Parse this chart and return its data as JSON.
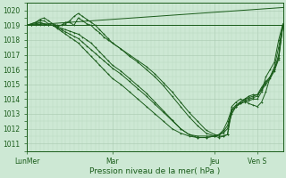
{
  "xlabel": "Pression niveau de la mer( hPa )",
  "ylim": [
    1010.5,
    1020.5
  ],
  "xlim": [
    0,
    120
  ],
  "yticks": [
    1011,
    1012,
    1013,
    1014,
    1015,
    1016,
    1017,
    1018,
    1019,
    1020
  ],
  "xtick_labels": [
    "LunMer",
    "Mar",
    "Jeu",
    "Ven S"
  ],
  "xtick_positions": [
    0,
    40,
    88,
    108
  ],
  "background_color": "#cde8d4",
  "grid_color_major": "#a8c8b0",
  "grid_color_minor": "#b8d8c0",
  "line_color": "#1a5c1a",
  "lines": [
    {
      "x": [
        0,
        2,
        4,
        6,
        8,
        10,
        12,
        14,
        16,
        18,
        20,
        22,
        24,
        26,
        28,
        30,
        32,
        34,
        36,
        38,
        40,
        44,
        48,
        52,
        56,
        60,
        64,
        68,
        72,
        76,
        80,
        84,
        88,
        90,
        92,
        94,
        96,
        98,
        100,
        102,
        104,
        106,
        108,
        110,
        112,
        114,
        116,
        118,
        120
      ],
      "y": [
        1019.0,
        1019.1,
        1019.2,
        1019.3,
        1019.3,
        1019.1,
        1019.0,
        1018.9,
        1019.0,
        1019.2,
        1019.2,
        1019.0,
        1019.5,
        1019.3,
        1019.1,
        1019.0,
        1018.7,
        1018.5,
        1018.2,
        1018.0,
        1017.8,
        1017.4,
        1017.0,
        1016.6,
        1016.2,
        1015.7,
        1015.1,
        1014.5,
        1013.8,
        1013.1,
        1012.5,
        1011.9,
        1011.6,
        1011.5,
        1011.5,
        1011.6,
        1013.5,
        1013.8,
        1014.0,
        1013.9,
        1013.7,
        1013.6,
        1013.5,
        1013.8,
        1014.5,
        1015.5,
        1016.2,
        1017.5,
        1019.0
      ]
    },
    {
      "x": [
        0,
        2,
        4,
        6,
        8,
        10,
        12,
        14,
        16,
        18,
        20,
        22,
        24,
        26,
        28,
        30,
        32,
        34,
        36,
        38,
        40,
        44,
        48,
        52,
        56,
        60,
        64,
        68,
        72,
        76,
        80,
        84,
        88,
        90,
        92,
        94,
        96,
        98,
        100,
        102,
        104,
        106,
        108,
        110,
        112,
        114,
        116,
        118,
        120
      ],
      "y": [
        1019.0,
        1019.1,
        1019.2,
        1019.4,
        1019.5,
        1019.3,
        1019.1,
        1019.0,
        1019.0,
        1019.1,
        1019.3,
        1019.6,
        1019.8,
        1019.6,
        1019.4,
        1019.2,
        1019.0,
        1018.7,
        1018.4,
        1018.1,
        1017.8,
        1017.4,
        1016.9,
        1016.5,
        1016.0,
        1015.5,
        1014.9,
        1014.2,
        1013.5,
        1012.8,
        1012.2,
        1011.7,
        1011.5,
        1011.4,
        1011.5,
        1011.6,
        1013.2,
        1013.5,
        1013.7,
        1013.8,
        1013.9,
        1014.0,
        1014.0,
        1014.5,
        1015.5,
        1016.0,
        1016.5,
        1018.0,
        1019.1
      ]
    },
    {
      "x": [
        0,
        2,
        4,
        6,
        8,
        10,
        12,
        14,
        16,
        18,
        20,
        22,
        24,
        26,
        28,
        30,
        32,
        34,
        36,
        38,
        40,
        44,
        48,
        52,
        56,
        60,
        64,
        68,
        72,
        76,
        80,
        84,
        88,
        90,
        92,
        94,
        96,
        98,
        100,
        102,
        104,
        106,
        108,
        110,
        112,
        114,
        116,
        118,
        120
      ],
      "y": [
        1019.0,
        1019.05,
        1019.1,
        1019.2,
        1019.1,
        1019.0,
        1019.0,
        1018.9,
        1018.8,
        1018.7,
        1018.6,
        1018.5,
        1018.4,
        1018.2,
        1018.0,
        1017.8,
        1017.5,
        1017.2,
        1016.9,
        1016.6,
        1016.3,
        1015.9,
        1015.4,
        1014.9,
        1014.4,
        1013.8,
        1013.2,
        1012.6,
        1012.0,
        1011.6,
        1011.5,
        1011.5,
        1011.5,
        1011.6,
        1011.7,
        1012.0,
        1013.0,
        1013.5,
        1013.8,
        1014.0,
        1014.2,
        1014.3,
        1014.3,
        1014.8,
        1015.2,
        1015.5,
        1016.0,
        1017.0,
        1019.0
      ]
    },
    {
      "x": [
        0,
        2,
        4,
        6,
        8,
        10,
        12,
        14,
        16,
        18,
        20,
        22,
        24,
        26,
        28,
        30,
        32,
        34,
        36,
        38,
        40,
        44,
        48,
        52,
        56,
        60,
        64,
        68,
        72,
        76,
        80,
        84,
        88,
        90,
        92,
        94,
        96,
        98,
        100,
        102,
        104,
        106,
        108,
        110,
        112,
        114,
        116,
        118,
        120
      ],
      "y": [
        1019.0,
        1019.05,
        1019.1,
        1019.15,
        1019.1,
        1019.0,
        1019.0,
        1018.85,
        1018.7,
        1018.55,
        1018.4,
        1018.25,
        1018.1,
        1017.85,
        1017.6,
        1017.35,
        1017.1,
        1016.85,
        1016.6,
        1016.35,
        1016.1,
        1015.7,
        1015.2,
        1014.7,
        1014.2,
        1013.65,
        1013.1,
        1012.55,
        1012.0,
        1011.6,
        1011.4,
        1011.4,
        1011.5,
        1011.6,
        1011.8,
        1012.2,
        1013.2,
        1013.5,
        1013.7,
        1013.9,
        1014.0,
        1014.1,
        1014.2,
        1014.7,
        1015.1,
        1015.5,
        1016.0,
        1016.8,
        1019.0
      ]
    },
    {
      "x": [
        0,
        2,
        4,
        6,
        8,
        10,
        12,
        14,
        16,
        18,
        20,
        22,
        24,
        26,
        28,
        30,
        32,
        34,
        36,
        38,
        40,
        44,
        48,
        52,
        56,
        60,
        64,
        68,
        72,
        76,
        80,
        84,
        88,
        90,
        92,
        94,
        96,
        98,
        100,
        102,
        104,
        106,
        108,
        110,
        112,
        114,
        116,
        118,
        120
      ],
      "y": [
        1019.0,
        1019.0,
        1019.0,
        1019.05,
        1019.0,
        1019.0,
        1019.0,
        1018.8,
        1018.6,
        1018.4,
        1018.2,
        1018.0,
        1017.8,
        1017.5,
        1017.2,
        1016.9,
        1016.6,
        1016.3,
        1016.0,
        1015.7,
        1015.4,
        1015.0,
        1014.5,
        1014.0,
        1013.5,
        1013.0,
        1012.5,
        1012.0,
        1011.7,
        1011.5,
        1011.4,
        1011.4,
        1011.5,
        1011.6,
        1011.9,
        1012.5,
        1013.3,
        1013.6,
        1013.8,
        1014.0,
        1014.1,
        1014.2,
        1014.3,
        1014.6,
        1015.0,
        1015.4,
        1015.9,
        1016.7,
        1019.0
      ]
    },
    {
      "x": [
        0,
        120
      ],
      "y": [
        1019.0,
        1020.2
      ],
      "straight": true
    },
    {
      "x": [
        0,
        120
      ],
      "y": [
        1019.0,
        1019.0
      ],
      "straight": true
    }
  ]
}
